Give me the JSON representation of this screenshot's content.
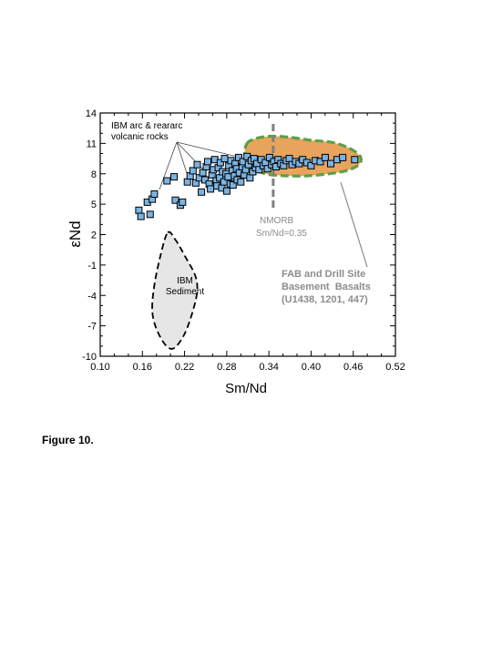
{
  "figure_caption": "Figure 10.",
  "chart_data": {
    "type": "scatter",
    "xlabel": "Sm/Nd",
    "ylabel": "εNd",
    "xlim": [
      0.1,
      0.52
    ],
    "ylim": [
      -10,
      14
    ],
    "xticks": [
      "0.10",
      "0.16",
      "0.22",
      "0.28",
      "0.34",
      "0.40",
      "0.46",
      "0.52"
    ],
    "yticks": [
      "-10",
      "-7",
      "-4",
      "-1",
      "2",
      "5",
      "8",
      "11",
      "14"
    ],
    "grid": false,
    "colors": {
      "points": "#7bb3e3",
      "fab_fill": "#e8a45c",
      "fab_border": "#5aa046",
      "sediment_fill": "#e6e6e6",
      "nmorb_line": "#808080",
      "gray_text": "#8c8c8c"
    },
    "annotations": {
      "ibm_arc_line1": "IBM arc & reararc",
      "ibm_arc_line2": "volcanic rocks",
      "nmorb_line1": "NMORB",
      "nmorb_line2": "Sm/Nd=0.35",
      "fab_line1": "FAB and Drill Site",
      "fab_line2": "Basement  Basalts",
      "fab_line3": "(U1438, 1201, 447)",
      "sed_line1": "IBM",
      "sed_line2": "Sediment"
    },
    "nmorb_smnd": 0.35,
    "series": [
      {
        "points": [
          [
            0.155,
            4.4
          ],
          [
            0.158,
            3.8
          ],
          [
            0.167,
            5.2
          ],
          [
            0.171,
            4.0
          ],
          [
            0.174,
            5.5
          ],
          [
            0.177,
            6.0
          ],
          [
            0.195,
            7.3
          ],
          [
            0.205,
            7.7
          ],
          [
            0.207,
            5.4
          ],
          [
            0.214,
            4.9
          ],
          [
            0.217,
            5.2
          ],
          [
            0.224,
            7.2
          ],
          [
            0.228,
            7.8
          ],
          [
            0.232,
            8.3
          ],
          [
            0.236,
            7.1
          ],
          [
            0.238,
            8.9
          ],
          [
            0.241,
            7.6
          ],
          [
            0.244,
            6.2
          ],
          [
            0.246,
            8.1
          ],
          [
            0.249,
            7.4
          ],
          [
            0.251,
            8.7
          ],
          [
            0.253,
            9.2
          ],
          [
            0.255,
            7.0
          ],
          [
            0.257,
            6.5
          ],
          [
            0.259,
            7.9
          ],
          [
            0.261,
            8.4
          ],
          [
            0.263,
            9.4
          ],
          [
            0.265,
            7.3
          ],
          [
            0.266,
            6.8
          ],
          [
            0.268,
            8.6
          ],
          [
            0.27,
            7.6
          ],
          [
            0.271,
            9.1
          ],
          [
            0.273,
            6.6
          ],
          [
            0.274,
            8.2
          ],
          [
            0.276,
            7.2
          ],
          [
            0.277,
            9.5
          ],
          [
            0.279,
            8.0
          ],
          [
            0.28,
            6.3
          ],
          [
            0.282,
            7.7
          ],
          [
            0.283,
            8.8
          ],
          [
            0.285,
            7.0
          ],
          [
            0.286,
            9.3
          ],
          [
            0.288,
            8.3
          ],
          [
            0.289,
            6.9
          ],
          [
            0.291,
            7.8
          ],
          [
            0.292,
            9.0
          ],
          [
            0.294,
            8.5
          ],
          [
            0.295,
            7.4
          ],
          [
            0.297,
            9.6
          ],
          [
            0.298,
            8.1
          ],
          [
            0.3,
            7.2
          ],
          [
            0.302,
            8.7
          ],
          [
            0.303,
            9.2
          ],
          [
            0.305,
            7.9
          ],
          [
            0.307,
            8.4
          ],
          [
            0.309,
            9.7
          ],
          [
            0.311,
            8.9
          ],
          [
            0.313,
            7.6
          ],
          [
            0.315,
            9.3
          ],
          [
            0.317,
            8.2
          ],
          [
            0.319,
            9.5
          ],
          [
            0.321,
            8.6
          ],
          [
            0.323,
            9.0
          ],
          [
            0.326,
            8.4
          ],
          [
            0.329,
            9.4
          ],
          [
            0.332,
            8.8
          ],
          [
            0.335,
            9.1
          ],
          [
            0.338,
            8.5
          ],
          [
            0.341,
            9.6
          ],
          [
            0.344,
            8.9
          ],
          [
            0.347,
            9.2
          ],
          [
            0.35,
            8.7
          ],
          [
            0.353,
            9.4
          ],
          [
            0.357,
            9.0
          ],
          [
            0.361,
            8.8
          ],
          [
            0.365,
            9.3
          ],
          [
            0.369,
            9.5
          ],
          [
            0.373,
            8.9
          ],
          [
            0.378,
            9.2
          ],
          [
            0.383,
            9.0
          ],
          [
            0.388,
            9.4
          ],
          [
            0.394,
            9.1
          ],
          [
            0.4,
            8.8
          ],
          [
            0.406,
            9.3
          ],
          [
            0.413,
            9.2
          ],
          [
            0.42,
            9.6
          ],
          [
            0.428,
            9.0
          ],
          [
            0.437,
            9.4
          ],
          [
            0.445,
            9.6
          ],
          [
            0.462,
            9.4
          ]
        ]
      }
    ],
    "regions": {
      "fab": [
        [
          0.308,
          10.9
        ],
        [
          0.318,
          11.4
        ],
        [
          0.34,
          11.7
        ],
        [
          0.37,
          11.6
        ],
        [
          0.4,
          11.3
        ],
        [
          0.43,
          11.1
        ],
        [
          0.455,
          10.5
        ],
        [
          0.47,
          9.7
        ],
        [
          0.468,
          8.9
        ],
        [
          0.45,
          8.3
        ],
        [
          0.425,
          8.0
        ],
        [
          0.395,
          7.8
        ],
        [
          0.365,
          7.8
        ],
        [
          0.335,
          8.0
        ],
        [
          0.315,
          8.7
        ],
        [
          0.306,
          9.8
        ]
      ],
      "sediment": [
        [
          0.196,
          2.2
        ],
        [
          0.207,
          1.5
        ],
        [
          0.222,
          -0.3
        ],
        [
          0.235,
          -2.0
        ],
        [
          0.238,
          -3.5
        ],
        [
          0.232,
          -5.5
        ],
        [
          0.22,
          -7.8
        ],
        [
          0.205,
          -9.2
        ],
        [
          0.193,
          -8.9
        ],
        [
          0.18,
          -7.3
        ],
        [
          0.174,
          -5.5
        ],
        [
          0.177,
          -3.0
        ],
        [
          0.186,
          0.0
        ]
      ]
    }
  }
}
